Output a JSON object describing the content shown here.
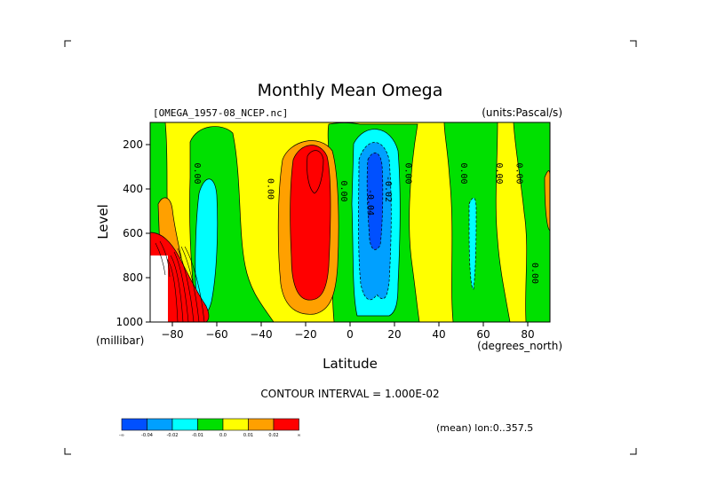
{
  "chart_data": {
    "type": "contour",
    "title": "Monthly Mean Omega",
    "dataset_label": "[OMEGA_1957-08_NCEP.nc]",
    "units_label": "(units:Pascal/s)",
    "xlabel": "Latitude",
    "x_units": "(degrees_north)",
    "ylabel": "Level",
    "y_units": "(millibar)",
    "xlim": [
      -90,
      90
    ],
    "ylim": [
      1000,
      100
    ],
    "x_ticks": [
      -80,
      -60,
      -40,
      -20,
      0,
      20,
      40,
      60,
      80
    ],
    "y_ticks": [
      200,
      400,
      600,
      800,
      1000
    ],
    "contour_interval_text": "CONTOUR INTERVAL = 1.000E-02",
    "footer_text": "(mean) lon:0..357.5",
    "contour_labels": [
      {
        "text": "0.00",
        "lat": -70,
        "level": 330
      },
      {
        "text": "0.00",
        "lat": -37,
        "level": 400
      },
      {
        "text": "0.00",
        "lat": -4,
        "level": 410
      },
      {
        "text": "-0.04",
        "lat": 8,
        "level": 460
      },
      {
        "text": "-0.02",
        "lat": 16,
        "level": 400
      },
      {
        "text": "0.00",
        "lat": 25,
        "level": 330
      },
      {
        "text": "0.00",
        "lat": 50,
        "level": 330
      },
      {
        "text": "0.00",
        "lat": 66,
        "level": 330
      },
      {
        "text": "0.00",
        "lat": 75,
        "level": 330
      },
      {
        "text": "0.00",
        "lat": 82,
        "level": 780
      }
    ],
    "colorbar": {
      "colors": [
        "#0050ff",
        "#00a0ff",
        "#00ffff",
        "#00e000",
        "#ffff00",
        "#ffa000",
        "#ff0000"
      ],
      "labels": [
        "-∞",
        "-0.04",
        "-0.02",
        "-0.01",
        "0.0",
        "0.01",
        "0.02",
        "∞"
      ]
    }
  }
}
